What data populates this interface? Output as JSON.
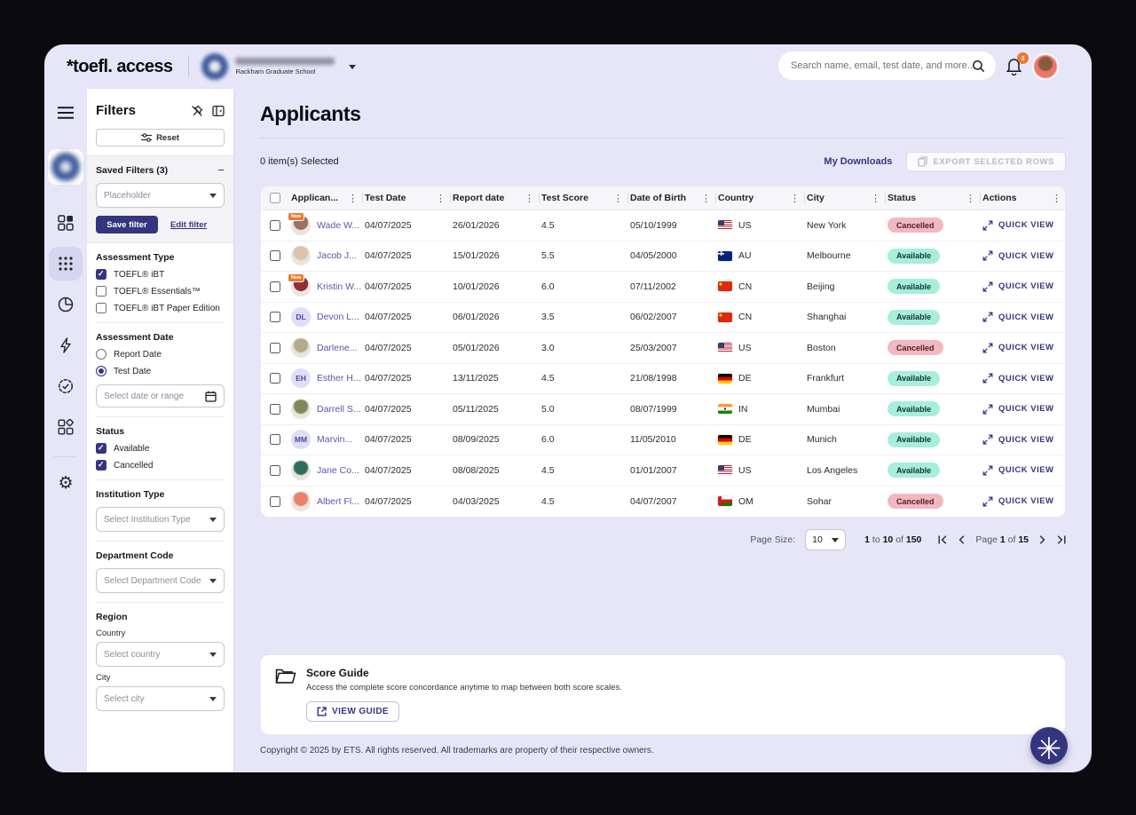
{
  "brand": {
    "logo_text": "*toefl. access"
  },
  "header": {
    "org_subtitle": "Rackham Graduate School",
    "search_placeholder": "Search name, email, test date, and more...",
    "notification_count": "3"
  },
  "filters": {
    "title": "Filters",
    "reset_label": "Reset",
    "saved": {
      "title": "Saved Filters (3)",
      "select_placeholder": "Placeholder",
      "save_label": "Save filter",
      "edit_label": "Edit filter"
    },
    "assessment_type": {
      "title": "Assessment Type",
      "options": [
        {
          "label": "TOEFL® iBT",
          "checked": true
        },
        {
          "label": "TOEFL® Essentials™",
          "checked": false
        },
        {
          "label": "TOEFL® iBT Paper Edition",
          "checked": false
        }
      ]
    },
    "assessment_date": {
      "title": "Assessment Date",
      "options": [
        {
          "label": "Report Date",
          "selected": false
        },
        {
          "label": "Test Date",
          "selected": true
        }
      ],
      "date_placeholder": "Select date or range"
    },
    "status": {
      "title": "Status",
      "options": [
        {
          "label": "Available",
          "checked": true
        },
        {
          "label": "Cancelled",
          "checked": true
        }
      ]
    },
    "institution_type": {
      "title": "Institution Type",
      "select_placeholder": "Select Institution Type"
    },
    "department_code": {
      "title": "Department Code",
      "select_placeholder": "Select Department Code"
    },
    "region": {
      "title": "Region",
      "country_label": "Country",
      "country_placeholder": "Select country",
      "city_label": "City",
      "city_placeholder": "Select city"
    }
  },
  "main": {
    "title": "Applicants",
    "selected_count": "0 item(s) Selected",
    "my_downloads_label": "My Downloads",
    "export_label": "EXPORT SELECTED ROWS"
  },
  "table": {
    "columns": [
      "Applican...",
      "Test Date",
      "Report date",
      "Test Score",
      "Date of Birth",
      "Country",
      "City",
      "Status",
      "Actions"
    ],
    "new_badge_label": "New",
    "quick_view_label": "QUICK VIEW",
    "rows": [
      {
        "name": "Wade W...",
        "avatar_type": "photo",
        "avatar_color": "#9a7460",
        "is_new": true,
        "test_date": "04/07/2025",
        "report_date": "26/01/2026",
        "score": "4.5",
        "dob": "05/10/1999",
        "country": "US",
        "city": "New York",
        "status": "Cancelled"
      },
      {
        "name": "Jacob J...",
        "avatar_type": "photo",
        "avatar_color": "#d9c3ab",
        "is_new": false,
        "test_date": "04/07/2025",
        "report_date": "15/01/2026",
        "score": "5.5",
        "dob": "04/05/2000",
        "country": "AU",
        "city": "Melbourne",
        "status": "Available"
      },
      {
        "name": "Kristin W...",
        "avatar_type": "photo",
        "avatar_color": "#8f2f38",
        "is_new": true,
        "test_date": "04/07/2025",
        "report_date": "10/01/2026",
        "score": "6.0",
        "dob": "07/11/2002",
        "country": "CN",
        "city": "Beijing",
        "status": "Available"
      },
      {
        "name": "Devon L...",
        "avatar_type": "initials",
        "initials": "DL",
        "is_new": false,
        "test_date": "04/07/2025",
        "report_date": "06/01/2026",
        "score": "3.5",
        "dob": "06/02/2007",
        "country": "CN",
        "city": "Shanghai",
        "status": "Available"
      },
      {
        "name": "Darlene...",
        "avatar_type": "photo",
        "avatar_color": "#b7ab87",
        "is_new": false,
        "test_date": "04/07/2025",
        "report_date": "05/01/2026",
        "score": "3.0",
        "dob": "25/03/2007",
        "country": "US",
        "city": "Boston",
        "status": "Cancelled"
      },
      {
        "name": "Esther H...",
        "avatar_type": "initials",
        "initials": "EH",
        "is_new": false,
        "test_date": "04/07/2025",
        "report_date": "13/11/2025",
        "score": "4.5",
        "dob": "21/08/1998",
        "country": "DE",
        "city": "Frankfurt",
        "status": "Available"
      },
      {
        "name": "Darrell S...",
        "avatar_type": "photo",
        "avatar_color": "#7d8a58",
        "is_new": false,
        "test_date": "04/07/2025",
        "report_date": "05/11/2025",
        "score": "5.0",
        "dob": "08/07/1999",
        "country": "IN",
        "city": "Mumbai",
        "status": "Available"
      },
      {
        "name": "Marvin...",
        "avatar_type": "initials",
        "initials": "MM",
        "is_new": false,
        "test_date": "04/07/2025",
        "report_date": "08/09/2025",
        "score": "6.0",
        "dob": "11/05/2010",
        "country": "DE",
        "city": "Munich",
        "status": "Available"
      },
      {
        "name": "Jane Co...",
        "avatar_type": "photo",
        "avatar_color": "#2e6b5e",
        "is_new": false,
        "test_date": "04/07/2025",
        "report_date": "08/08/2025",
        "score": "4.5",
        "dob": "01/01/2007",
        "country": "US",
        "city": "Los Angeles",
        "status": "Available"
      },
      {
        "name": "Albert Fl...",
        "avatar_type": "photo",
        "avatar_color": "#e8826c",
        "is_new": false,
        "test_date": "04/07/2025",
        "report_date": "04/03/2025",
        "score": "4.5",
        "dob": "04/07/2007",
        "country": "OM",
        "city": "Sohar",
        "status": "Cancelled"
      }
    ]
  },
  "pagination": {
    "page_size_label": "Page Size:",
    "page_size": "10",
    "range_from": "1",
    "range_to": "10",
    "range_of_word": "of",
    "range_total": "150",
    "page_word": "Page",
    "page_current": "1",
    "page_of_word": "of",
    "page_total": "15"
  },
  "score_guide": {
    "title": "Score Guide",
    "description": "Access the complete score concordance anytime to map between both score scales.",
    "button_label": "VIEW GUIDE"
  },
  "footer": {
    "copyright": "Copyright © 2025 by ETS. All rights reserved. All trademarks are property of their respective owners."
  },
  "colors": {
    "accent_indigo": "#35357F",
    "badge_available_bg": "#A7EEDC",
    "badge_cancelled_bg": "#F2B8C1",
    "new_badge_bg": "#E8792F",
    "app_background": "#E6E6F8"
  }
}
